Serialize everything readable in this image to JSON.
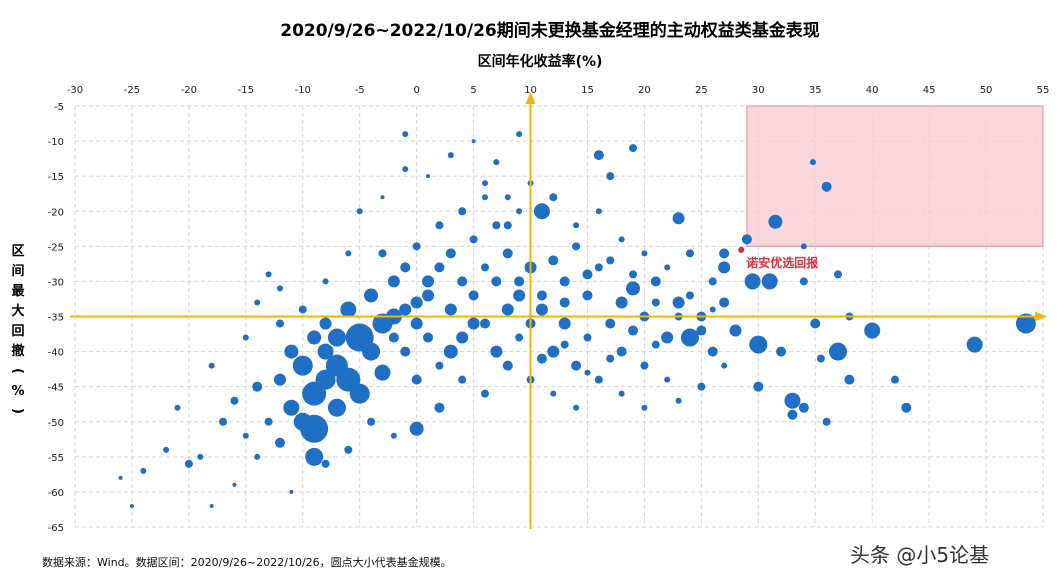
{
  "chart_data": {
    "type": "scatter",
    "title": "2020/9/26~2022/10/26期间未更换基金经理的主动权益类基金表现",
    "xlabel": "区间年化收益率(%)",
    "ylabel": "区间最大回撤(%)",
    "xlim": [
      -30,
      55
    ],
    "ylim": [
      -65,
      -5
    ],
    "x_ticks": [
      "-30",
      "-25",
      "-20",
      "-15",
      "-10",
      "-5",
      "0",
      "5",
      "10",
      "15",
      "20",
      "25",
      "30",
      "35",
      "40",
      "45",
      "50",
      "55"
    ],
    "y_ticks": [
      "-5",
      "-10",
      "-15",
      "-20",
      "-25",
      "-30",
      "-35",
      "-40",
      "-45",
      "-50",
      "-55",
      "-60",
      "-65"
    ],
    "grid": true,
    "x_axis_position_on_y": -35,
    "y_axis_position_on_x": 10,
    "highlight_region": {
      "x": [
        29,
        55
      ],
      "y": [
        -25,
        -5
      ],
      "color": "#f8c9d1"
    },
    "highlight_point": {
      "label": "诺安优选回报",
      "x": 28.5,
      "y": -25.5,
      "color": "#e0303a"
    },
    "point_color": "#1f6fc5",
    "axis_arrow_color": "#f2b705",
    "points": [
      [
        -26,
        -58,
        2
      ],
      [
        -24,
        -57,
        3
      ],
      [
        -22,
        -54,
        3
      ],
      [
        -20,
        -56,
        4
      ],
      [
        -19,
        -55,
        3
      ],
      [
        -18,
        -62,
        2
      ],
      [
        -17,
        -50,
        4
      ],
      [
        -16,
        -47,
        4
      ],
      [
        -15,
        -52,
        3
      ],
      [
        -14,
        -45,
        5
      ],
      [
        -14,
        -55,
        3
      ],
      [
        -13,
        -50,
        4
      ],
      [
        -12,
        -44,
        6
      ],
      [
        -12,
        -53,
        5
      ],
      [
        -11,
        -40,
        7
      ],
      [
        -11,
        -48,
        8
      ],
      [
        -10,
        -42,
        10
      ],
      [
        -10,
        -50,
        9
      ],
      [
        -9,
        -46,
        12
      ],
      [
        -9,
        -51,
        14
      ],
      [
        -8,
        -40,
        8
      ],
      [
        -8,
        -44,
        10
      ],
      [
        -8,
        -36,
        6
      ],
      [
        -7,
        -48,
        9
      ],
      [
        -7,
        -38,
        9
      ],
      [
        -6,
        -44,
        12
      ],
      [
        -6,
        -34,
        8
      ],
      [
        -5,
        -46,
        10
      ],
      [
        -5,
        -38,
        14
      ],
      [
        -4,
        -40,
        9
      ],
      [
        -4,
        -32,
        7
      ],
      [
        -3,
        -36,
        10
      ],
      [
        -3,
        -43,
        8
      ],
      [
        -2,
        -30,
        6
      ],
      [
        -2,
        -38,
        5
      ],
      [
        -1,
        -34,
        6
      ],
      [
        -1,
        -40,
        5
      ],
      [
        0,
        -36,
        6
      ],
      [
        0,
        -44,
        5
      ],
      [
        1,
        -32,
        6
      ],
      [
        1,
        -38,
        5
      ],
      [
        2,
        -28,
        5
      ],
      [
        2,
        -42,
        4
      ],
      [
        3,
        -34,
        6
      ],
      [
        3,
        -26,
        5
      ],
      [
        4,
        -30,
        5
      ],
      [
        4,
        -38,
        6
      ],
      [
        5,
        -32,
        5
      ],
      [
        5,
        -24,
        4
      ],
      [
        6,
        -36,
        5
      ],
      [
        6,
        -28,
        4
      ],
      [
        7,
        -30,
        5
      ],
      [
        7,
        -22,
        4
      ],
      [
        8,
        -34,
        6
      ],
      [
        8,
        -26,
        5
      ],
      [
        9,
        -30,
        5
      ],
      [
        9,
        -38,
        4
      ],
      [
        10,
        -28,
        6
      ],
      [
        10,
        -36,
        5
      ],
      [
        11,
        -20,
        8
      ],
      [
        11,
        -32,
        5
      ],
      [
        12,
        -40,
        6
      ],
      [
        12,
        -27,
        5
      ],
      [
        13,
        -30,
        5
      ],
      [
        13,
        -36,
        6
      ],
      [
        14,
        -25,
        4
      ],
      [
        14,
        -42,
        5
      ],
      [
        15,
        -32,
        5
      ],
      [
        15,
        -38,
        4
      ],
      [
        16,
        -12,
        5
      ],
      [
        16,
        -28,
        4
      ],
      [
        17,
        -36,
        5
      ],
      [
        17,
        -15,
        4
      ],
      [
        18,
        -33,
        6
      ],
      [
        18,
        -40,
        5
      ],
      [
        19,
        -31,
        7
      ],
      [
        19,
        -11,
        4
      ],
      [
        20,
        -35,
        5
      ],
      [
        20,
        -42,
        4
      ],
      [
        21,
        -30,
        5
      ],
      [
        22,
        -38,
        6
      ],
      [
        23,
        -21,
        6
      ],
      [
        23,
        -33,
        6
      ],
      [
        24,
        -38,
        9
      ],
      [
        24,
        -26,
        4
      ],
      [
        25,
        -35,
        5
      ],
      [
        26,
        -40,
        5
      ],
      [
        26,
        -30,
        4
      ],
      [
        27,
        -26,
        5
      ],
      [
        27,
        -28,
        6
      ],
      [
        28,
        -37,
        6
      ],
      [
        28.5,
        -25.5,
        3
      ],
      [
        29,
        -24,
        5
      ],
      [
        29.5,
        -30,
        8
      ],
      [
        30,
        -39,
        9
      ],
      [
        30,
        -45,
        5
      ],
      [
        31,
        -30,
        8
      ],
      [
        31.5,
        -21.5,
        7
      ],
      [
        32,
        -40,
        5
      ],
      [
        33,
        -47,
        8
      ],
      [
        33,
        -49,
        5
      ],
      [
        34,
        -25,
        3
      ],
      [
        34,
        -30,
        4
      ],
      [
        34,
        -48,
        5
      ],
      [
        34.8,
        -13,
        3
      ],
      [
        35,
        -36,
        5
      ],
      [
        35.5,
        -41,
        4
      ],
      [
        36,
        -16.5,
        5
      ],
      [
        36,
        -50,
        4
      ],
      [
        37,
        -40,
        9
      ],
      [
        37,
        -29,
        4
      ],
      [
        38,
        -35,
        4
      ],
      [
        38,
        -44,
        5
      ],
      [
        40,
        -37,
        8
      ],
      [
        42,
        -44,
        4
      ],
      [
        43,
        -48,
        5
      ],
      [
        49,
        -39,
        8
      ],
      [
        53.5,
        -36,
        10
      ],
      [
        -25,
        -62,
        2
      ],
      [
        -21,
        -48,
        3
      ],
      [
        -18,
        -42,
        3
      ],
      [
        -15,
        -38,
        3
      ],
      [
        -13,
        -29,
        3
      ],
      [
        -12,
        -36,
        4
      ],
      [
        -10,
        -34,
        4
      ],
      [
        -8,
        -30,
        3
      ],
      [
        -6,
        -26,
        3
      ],
      [
        -5,
        -20,
        3
      ],
      [
        -3,
        -18,
        2
      ],
      [
        -1,
        -14,
        3
      ],
      [
        1,
        -15,
        2
      ],
      [
        3,
        -12,
        3
      ],
      [
        5,
        -10,
        2
      ],
      [
        6,
        -16,
        3
      ],
      [
        7,
        -13,
        3
      ],
      [
        8,
        -18,
        3
      ],
      [
        9,
        -20,
        3
      ],
      [
        9,
        -9,
        3
      ],
      [
        -1,
        -9,
        3
      ],
      [
        4,
        -44,
        4
      ],
      [
        6,
        -46,
        4
      ],
      [
        8,
        -42,
        5
      ],
      [
        10,
        -44,
        4
      ],
      [
        12,
        -46,
        3
      ],
      [
        14,
        -48,
        3
      ],
      [
        16,
        -44,
        4
      ],
      [
        18,
        -46,
        3
      ],
      [
        20,
        -48,
        3
      ],
      [
        22,
        -44,
        3
      ],
      [
        -4,
        -50,
        4
      ],
      [
        -2,
        -52,
        3
      ],
      [
        0,
        -51,
        7
      ],
      [
        2,
        -48,
        5
      ],
      [
        -6,
        -54,
        4
      ],
      [
        -8,
        -56,
        4
      ],
      [
        -9,
        -55,
        9
      ],
      [
        -11,
        -60,
        2
      ],
      [
        -16,
        -59,
        2
      ],
      [
        -14,
        -33,
        3
      ],
      [
        -12,
        -31,
        3
      ],
      [
        0,
        -25,
        4
      ],
      [
        2,
        -22,
        4
      ],
      [
        4,
        -20,
        4
      ],
      [
        6,
        -18,
        3
      ],
      [
        8,
        -22,
        4
      ],
      [
        10,
        -16,
        3
      ],
      [
        12,
        -18,
        4
      ],
      [
        14,
        -22,
        3
      ],
      [
        16,
        -20,
        3
      ],
      [
        18,
        -24,
        3
      ],
      [
        20,
        -26,
        3
      ],
      [
        22,
        -28,
        3
      ],
      [
        24,
        -32,
        4
      ],
      [
        26,
        -34,
        3
      ],
      [
        27,
        -42,
        3
      ],
      [
        25,
        -45,
        4
      ],
      [
        23,
        -47,
        3
      ],
      [
        21,
        -39,
        4
      ],
      [
        19,
        -37,
        5
      ],
      [
        17,
        -41,
        4
      ],
      [
        15,
        -43,
        3
      ],
      [
        13,
        -39,
        4
      ],
      [
        11,
        -41,
        5
      ],
      [
        -2,
        -35,
        8
      ],
      [
        0,
        -33,
        6
      ],
      [
        -7,
        -42,
        11
      ],
      [
        -9,
        -38,
        7
      ],
      [
        3,
        -40,
        7
      ],
      [
        5,
        -36,
        6
      ],
      [
        7,
        -40,
        6
      ],
      [
        9,
        -32,
        6
      ],
      [
        11,
        -34,
        6
      ],
      [
        1,
        -30,
        6
      ],
      [
        -1,
        -28,
        5
      ],
      [
        -3,
        -26,
        4
      ],
      [
        13,
        -33,
        5
      ],
      [
        15,
        -29,
        5
      ],
      [
        17,
        -27,
        4
      ],
      [
        19,
        -29,
        4
      ],
      [
        21,
        -33,
        4
      ],
      [
        23,
        -35,
        4
      ],
      [
        25,
        -37,
        5
      ],
      [
        27,
        -33,
        5
      ]
    ]
  },
  "source_note": "数据来源：Wind。数据区间：2020/9/26~2022/10/26，圆点大小代表基金规模。",
  "watermark": "头条 @小5论基"
}
